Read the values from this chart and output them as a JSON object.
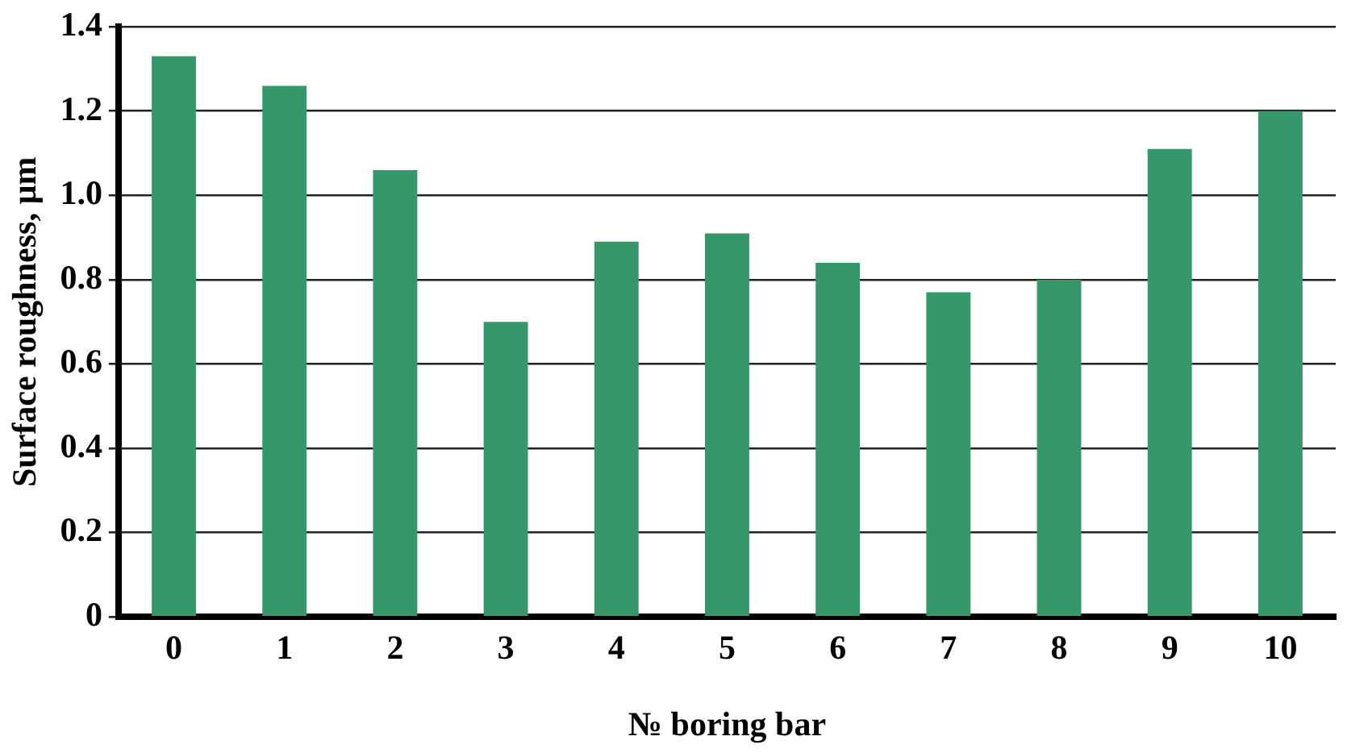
{
  "chart_data": {
    "type": "bar",
    "xlabel": "№ boring bar",
    "ylabel": "Surface roughness, µm",
    "categories": [
      "0",
      "1",
      "2",
      "3",
      "4",
      "5",
      "6",
      "7",
      "8",
      "9",
      "10"
    ],
    "values": [
      1.33,
      1.26,
      1.06,
      0.7,
      0.89,
      0.91,
      0.84,
      0.77,
      0.8,
      1.11,
      1.2
    ],
    "color": "#36986a",
    "ylim": [
      0,
      1.4
    ],
    "yticks": [
      0,
      {
        "value": 0.2,
        "label": "0.2"
      },
      {
        "value": 0.4,
        "label": "0.4"
      },
      {
        "value": 0.6,
        "label": "0.6"
      },
      {
        "value": 0.8,
        "label": "0.8"
      },
      {
        "value": 1.0,
        "label": "1.0"
      },
      {
        "value": 1.2,
        "label": "1.2"
      },
      {
        "value": 1.4,
        "label": "1.4"
      }
    ],
    "grid": "y",
    "legend": false
  }
}
